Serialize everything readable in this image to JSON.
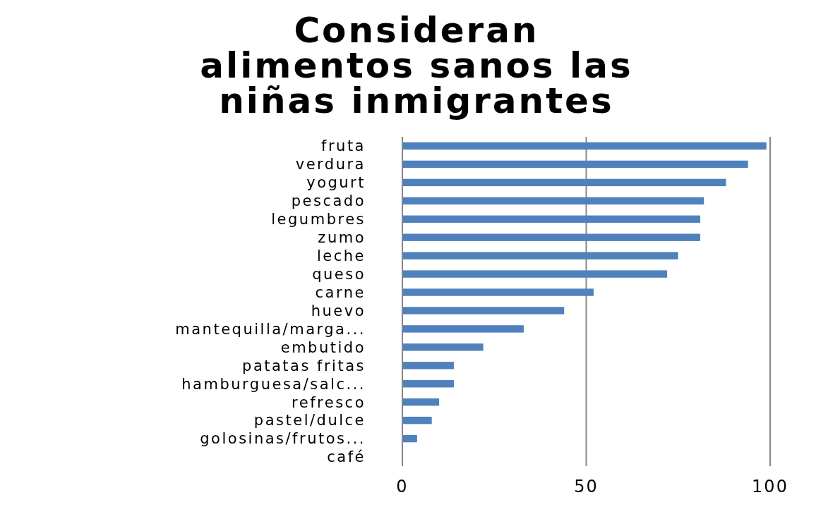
{
  "chart_data": {
    "type": "bar",
    "orientation": "horizontal",
    "title": "Consideran\nalimentos sanos las\nniñas inmigrantes",
    "categories": [
      "fruta",
      "verdura",
      "yogurt",
      "pescado",
      "legumbres",
      "zumo",
      "leche",
      "queso",
      "carne",
      "huevo",
      "mantequilla/marga...",
      "embutido",
      "patatas fritas",
      "hamburguesa/salc...",
      "refresco",
      "pastel/dulce",
      "golosinas/frutos...",
      "café"
    ],
    "values": [
      99,
      94,
      88,
      82,
      81,
      81,
      75,
      72,
      52,
      44,
      33,
      22,
      14,
      14,
      10,
      8,
      4,
      0
    ],
    "color": "#4f81bd",
    "xlim": [
      0,
      100
    ],
    "xticks": [
      0,
      50,
      100
    ],
    "grid": "x"
  }
}
